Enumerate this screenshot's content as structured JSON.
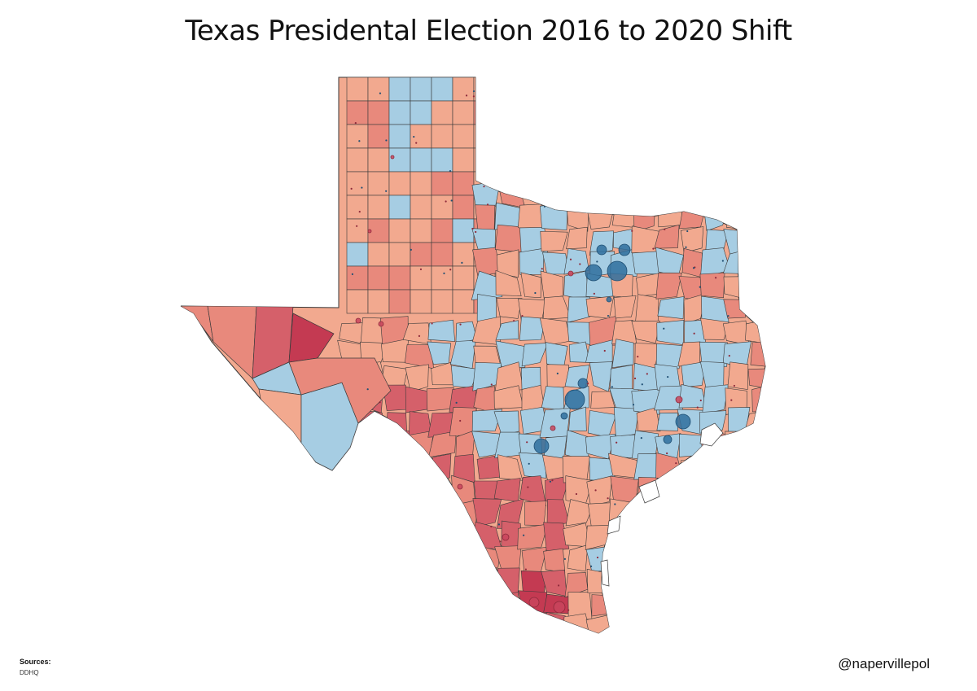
{
  "title": "Texas Presidental Election 2016 to 2020 Shift",
  "sources": {
    "label": "Sources:",
    "value": "DDHQ"
  },
  "credit": "@napervillepol",
  "palette": {
    "blue_shift": "#a6cde3",
    "blue_bubble": "#2f6f9e",
    "red_light": "#f2a98f",
    "red_mid": "#e8897c",
    "red_strong": "#d5606a",
    "red_deep": "#c43a52",
    "red_bubble": "#c9455d",
    "outline": "#3a3a3a"
  }
}
